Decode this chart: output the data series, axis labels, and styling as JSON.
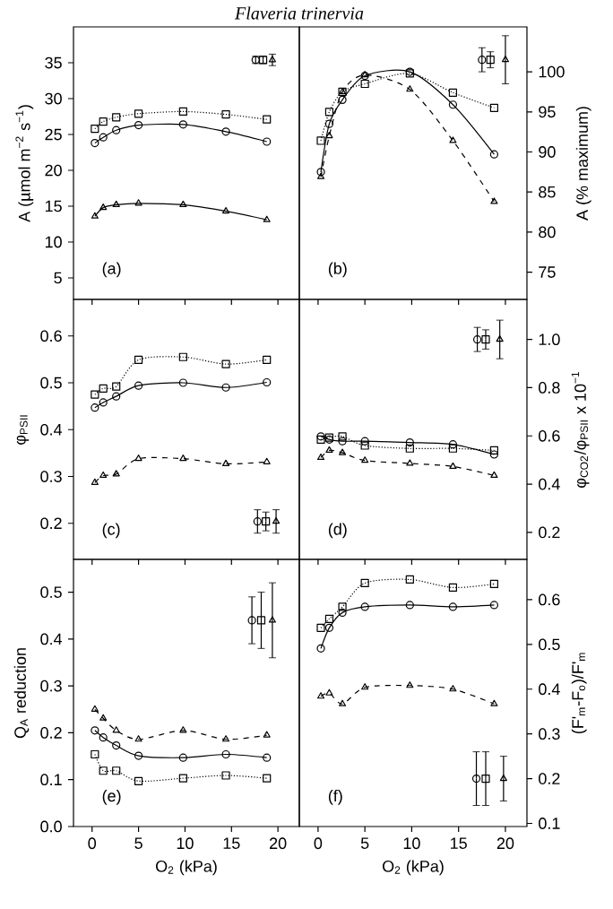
{
  "chart_data": [
    {
      "type": "line",
      "title": "Flaveria trinervia",
      "ylabel": "A (µmol m$^{−2}$ s$^{−1}$)",
      "annotations": [
        "(a)"
      ],
      "xlim": [
        -2,
        22.3
      ],
      "xticks": [
        0,
        5,
        10,
        15,
        20
      ],
      "ylim": [
        2,
        40
      ],
      "yticks": [
        5,
        10,
        15,
        20,
        25,
        30,
        35
      ],
      "tick_labels": "y",
      "x": [
        0.3,
        1.2,
        2.6,
        5,
        9.8,
        14.4,
        18.8
      ],
      "series": [
        {
          "color": "#000000",
          "marker": "square",
          "line_style": "dotted",
          "values": [
            25.8,
            26.8,
            27.4,
            27.9,
            28.2,
            27.8,
            27.1
          ]
        },
        {
          "color": "#000000",
          "marker": "circle",
          "line_style": "solid",
          "values": [
            23.8,
            24.6,
            25.6,
            26.3,
            26.4,
            25.4,
            24.0
          ]
        },
        {
          "color": "#000000",
          "marker": "triangle",
          "line_style": "solid",
          "values": [
            13.6,
            14.8,
            15.2,
            15.4,
            15.2,
            14.3,
            13.1
          ]
        },
        {
          "type": "scatter",
          "color": "#000000",
          "marker": "circle",
          "x": [
            17.6
          ],
          "values": [
            35.4
          ],
          "errors": [
            0.5
          ]
        },
        {
          "type": "scatter",
          "color": "#000000",
          "marker": "square",
          "x": [
            18.4
          ],
          "values": [
            35.4
          ],
          "errors": [
            0.5
          ]
        },
        {
          "type": "scatter",
          "color": "#000000",
          "marker": "triangle",
          "x": [
            19.4
          ],
          "values": [
            35.4
          ],
          "errors": [
            0.8
          ]
        }
      ]
    },
    {
      "type": "line",
      "y2label": "A (% maximum)",
      "annotations": [
        "(b)"
      ],
      "xlim": [
        -2,
        22.3
      ],
      "xticks": [
        0,
        5,
        10,
        15,
        20
      ],
      "y2lim": [
        71.6,
        105.6
      ],
      "y2ticks": [
        75,
        80,
        85,
        90,
        95,
        100
      ],
      "tick_labels": "y",
      "x": [
        0.3,
        1.2,
        2.6,
        5,
        9.8,
        14.4,
        18.8
      ],
      "series": [
        {
          "axis": "y2",
          "color": "#000000",
          "marker": "square",
          "line_style": "dotted",
          "values": [
            91.4,
            95,
            97.5,
            98.5,
            99.8,
            97.4,
            95.5
          ]
        },
        {
          "axis": "y2",
          "color": "#000000",
          "marker": "circle",
          "line_style": "solid",
          "values": [
            87.5,
            93.5,
            96.5,
            99.5,
            100,
            95.9,
            89.7
          ]
        },
        {
          "axis": "y2",
          "color": "#000000",
          "marker": "triangle",
          "line_style": "dashed",
          "values": [
            86.9,
            92,
            97.5,
            99.6,
            97.8,
            91.4,
            83.8
          ]
        },
        {
          "axis": "y2",
          "type": "scatter",
          "color": "#000000",
          "marker": "circle",
          "x": [
            17.5
          ],
          "values": [
            101.5
          ],
          "errors": [
            1.5
          ]
        },
        {
          "axis": "y2",
          "type": "scatter",
          "color": "#000000",
          "marker": "square",
          "x": [
            18.4
          ],
          "values": [
            101.5
          ],
          "errors": [
            1
          ]
        },
        {
          "axis": "y2",
          "type": "scatter",
          "color": "#000000",
          "marker": "triangle",
          "x": [
            20.0
          ],
          "values": [
            101.5
          ],
          "errors": [
            3
          ]
        }
      ]
    },
    {
      "type": "line",
      "ylabel": "φ$_{PSII}$",
      "annotations": [
        "(c)"
      ],
      "xlim": [
        -2,
        22.3
      ],
      "xticks": [
        0,
        5,
        10,
        15,
        20
      ],
      "ylim": [
        0.123,
        0.678
      ],
      "yticks": [
        0.2,
        0.3,
        0.4,
        0.5,
        0.6
      ],
      "tick_labels": "y",
      "x": [
        0.3,
        1.2,
        2.6,
        5,
        9.8,
        14.4,
        18.8
      ],
      "series": [
        {
          "color": "#000000",
          "marker": "square",
          "line_style": "dotted",
          "values": [
            0.475,
            0.488,
            0.492,
            0.549,
            0.555,
            0.54,
            0.549
          ]
        },
        {
          "color": "#000000",
          "marker": "circle",
          "line_style": "solid",
          "values": [
            0.447,
            0.458,
            0.471,
            0.494,
            0.5,
            0.49,
            0.501
          ]
        },
        {
          "color": "#000000",
          "marker": "triangle",
          "line_style": "dashed",
          "values": [
            0.287,
            0.302,
            0.305,
            0.338,
            0.338,
            0.327,
            0.331
          ]
        },
        {
          "type": "scatter",
          "color": "#000000",
          "marker": "circle",
          "x": [
            17.8
          ],
          "values": [
            0.204
          ],
          "errors": [
            0.025
          ]
        },
        {
          "type": "scatter",
          "color": "#000000",
          "marker": "square",
          "x": [
            18.7
          ],
          "values": [
            0.204
          ],
          "errors": [
            0.02
          ]
        },
        {
          "type": "scatter",
          "color": "#000000",
          "marker": "triangle",
          "x": [
            19.8
          ],
          "values": [
            0.204
          ],
          "errors": [
            0.025
          ]
        }
      ]
    },
    {
      "type": "line",
      "y2label": "φ$_{CO2}$/φ$_{PSII}$ x 10$^{−1}$",
      "annotations": [
        "(d)"
      ],
      "xlim": [
        -2,
        22.3
      ],
      "xticks": [
        0,
        5,
        10,
        15,
        20
      ],
      "y2lim": [
        0.088,
        1.166
      ],
      "y2ticks": [
        0.2,
        0.4,
        0.6,
        0.8,
        {
          "value": 1,
          "label": "1.0"
        }
      ],
      "tick_labels": "y",
      "x": [
        0.3,
        1.2,
        2.6,
        5,
        9.8,
        14.4,
        18.8
      ],
      "series": [
        {
          "axis": "y2",
          "color": "#000000",
          "marker": "square",
          "line_style": "dotted",
          "values": [
            0.585,
            0.593,
            0.598,
            0.56,
            0.548,
            0.548,
            0.54
          ]
        },
        {
          "axis": "y2",
          "color": "#000000",
          "marker": "circle",
          "line_style": "solid",
          "values": [
            0.598,
            0.585,
            0.578,
            0.578,
            0.573,
            0.565,
            0.523
          ]
        },
        {
          "axis": "y2",
          "color": "#000000",
          "marker": "triangle",
          "line_style": "dashed",
          "values": [
            0.51,
            0.54,
            0.53,
            0.498,
            0.486,
            0.473,
            0.436
          ]
        },
        {
          "axis": "y2",
          "type": "scatter",
          "color": "#000000",
          "marker": "circle",
          "x": [
            17.0
          ],
          "values": [
            1.0
          ],
          "errors": [
            0.05
          ]
        },
        {
          "axis": "y2",
          "type": "scatter",
          "color": "#000000",
          "marker": "square",
          "x": [
            17.9
          ],
          "values": [
            1.0
          ],
          "errors": [
            0.04
          ]
        },
        {
          "axis": "y2",
          "type": "scatter",
          "color": "#000000",
          "marker": "triangle",
          "x": [
            19.4
          ],
          "values": [
            1.0
          ],
          "errors": [
            0.08
          ]
        }
      ]
    },
    {
      "type": "line",
      "ylabel": "Q$_{A}$ reduction",
      "xlabel": "O$_{2}$ (kPa)",
      "annotations": [
        "(e)"
      ],
      "xlim": [
        -2,
        22.3
      ],
      "xticks": [
        0,
        5,
        10,
        15,
        20
      ],
      "ylim": [
        0,
        0.57
      ],
      "yticks": [
        {
          "value": 0,
          "label": "0.0"
        },
        0.1,
        0.2,
        0.3,
        0.4,
        0.5
      ],
      "x": [
        0.3,
        1.2,
        2.6,
        5,
        9.8,
        14.4,
        18.8
      ],
      "series": [
        {
          "color": "#000000",
          "marker": "square",
          "line_style": "dotted",
          "values": [
            0.154,
            0.119,
            0.119,
            0.097,
            0.103,
            0.109,
            0.103
          ]
        },
        {
          "color": "#000000",
          "marker": "circle",
          "line_style": "solid",
          "values": [
            0.205,
            0.19,
            0.173,
            0.151,
            0.147,
            0.154,
            0.147
          ]
        },
        {
          "color": "#000000",
          "marker": "triangle",
          "line_style": "dashed",
          "values": [
            0.25,
            0.231,
            0.205,
            0.186,
            0.205,
            0.186,
            0.195
          ]
        },
        {
          "type": "scatter",
          "color": "#000000",
          "marker": "circle",
          "x": [
            17.2
          ],
          "values": [
            0.44
          ],
          "errors": [
            0.05
          ]
        },
        {
          "type": "scatter",
          "color": "#000000",
          "marker": "square",
          "x": [
            18.2
          ],
          "values": [
            0.44
          ],
          "errors": [
            0.06
          ]
        },
        {
          "type": "scatter",
          "color": "#000000",
          "marker": "triangle",
          "x": [
            19.4
          ],
          "values": [
            0.44
          ],
          "errors": [
            0.08
          ]
        }
      ]
    },
    {
      "type": "line",
      "y2label": "(F'$_{m}$-F$_{o}$)/F'$_{m}$",
      "xlabel": "O$_{2}$ (kPa)",
      "annotations": [
        "(f)"
      ],
      "xlim": [
        -2,
        22.3
      ],
      "xticks": [
        0,
        5,
        10,
        15,
        20
      ],
      "y2lim": [
        0.093,
        0.69
      ],
      "y2ticks": [
        0.1,
        0.2,
        0.3,
        0.4,
        0.5,
        0.6
      ],
      "x": [
        0.3,
        1.2,
        2.6,
        5,
        9.8,
        14.4,
        18.8
      ],
      "series": [
        {
          "axis": "y2",
          "color": "#000000",
          "marker": "square",
          "line_style": "dotted",
          "values": [
            0.537,
            0.557,
            0.584,
            0.637,
            0.645,
            0.627,
            0.635
          ]
        },
        {
          "axis": "y2",
          "color": "#000000",
          "marker": "circle",
          "line_style": "solid",
          "values": [
            0.491,
            0.537,
            0.571,
            0.584,
            0.588,
            0.584,
            0.588
          ]
        },
        {
          "axis": "y2",
          "color": "#000000",
          "marker": "triangle",
          "line_style": "dashed",
          "values": [
            0.384,
            0.391,
            0.367,
            0.404,
            0.408,
            0.4,
            0.367
          ]
        },
        {
          "axis": "y2",
          "type": "scatter",
          "color": "#000000",
          "marker": "circle",
          "x": [
            16.9
          ],
          "values": [
            0.2
          ],
          "errors": [
            0.06
          ]
        },
        {
          "axis": "y2",
          "type": "scatter",
          "color": "#000000",
          "marker": "square",
          "x": [
            17.9
          ],
          "values": [
            0.2
          ],
          "errors": [
            0.06
          ]
        },
        {
          "axis": "y2",
          "type": "scatter",
          "color": "#000000",
          "marker": "triangle",
          "x": [
            19.8
          ],
          "values": [
            0.2
          ],
          "errors": [
            0.05
          ]
        }
      ]
    }
  ]
}
